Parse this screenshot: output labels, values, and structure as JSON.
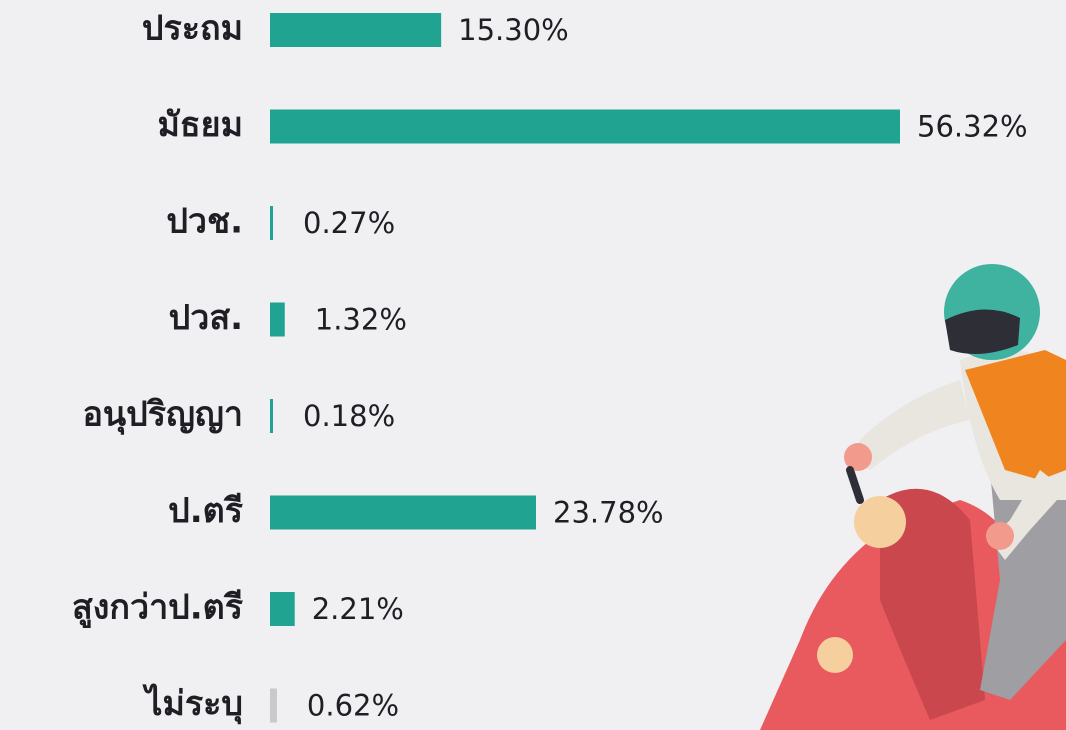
{
  "chart_data": {
    "type": "bar",
    "orientation": "horizontal",
    "categories": [
      "ประถม",
      "มัธยม",
      "ปวช.",
      "ปวส.",
      "อนุปริญญา",
      "ป.ตรี",
      "สูงกว่าป.ตรี",
      "ไม่ระบุ"
    ],
    "values": [
      15.3,
      56.32,
      0.27,
      1.32,
      0.18,
      23.78,
      2.21,
      0.62
    ],
    "value_labels": [
      "15.30%",
      "56.32%",
      "0.27%",
      "1.32%",
      "0.18%",
      "23.78%",
      "2.21%",
      "0.62%"
    ],
    "colors": [
      "#21a392",
      "#21a392",
      "#21a392",
      "#21a392",
      "#21a392",
      "#21a392",
      "#21a392",
      "#c9c9cc"
    ]
  }
}
